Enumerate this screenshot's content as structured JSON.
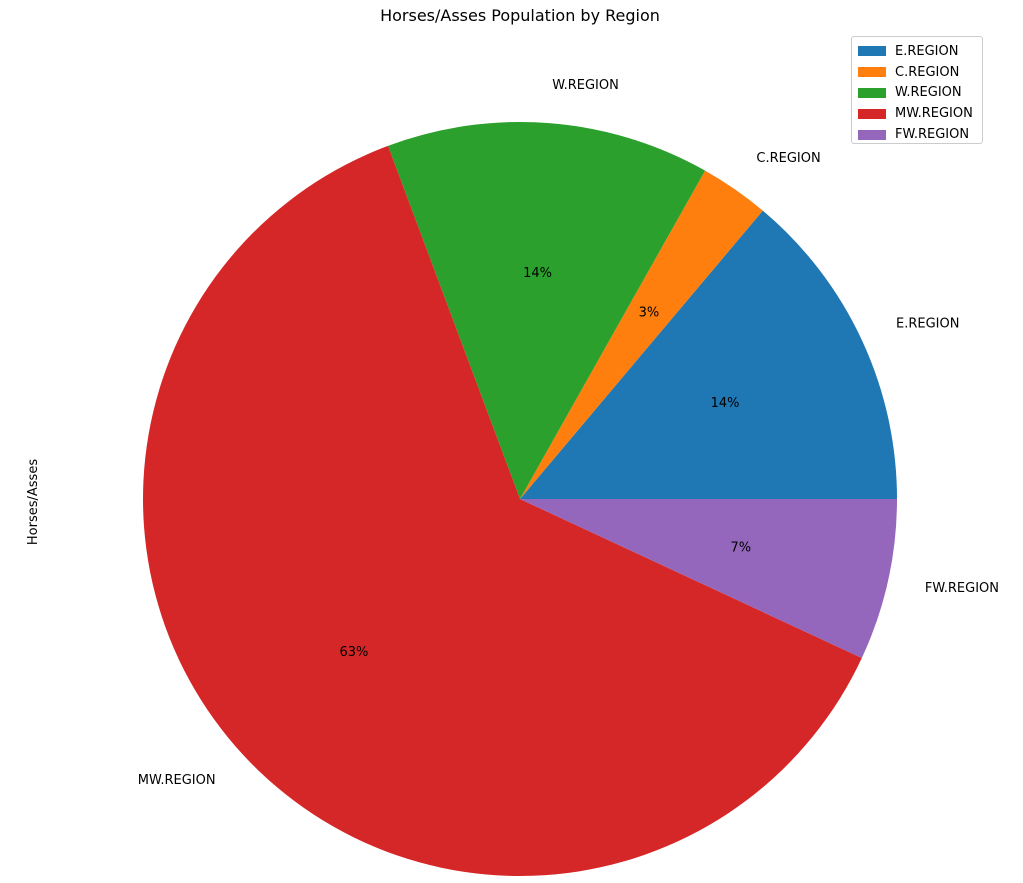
{
  "chart_data": {
    "type": "pie",
    "title": "Horses/Asses Population by Region",
    "ylabel": "Horses/Asses",
    "categories": [
      "E.REGION",
      "C.REGION",
      "W.REGION",
      "MW.REGION",
      "FW.REGION"
    ],
    "values": [
      14,
      3,
      14,
      63,
      7
    ],
    "value_labels": [
      "14%",
      "3%",
      "14%",
      "63%",
      "7%"
    ],
    "colors": [
      "#1f77b4",
      "#ff7f0e",
      "#2ca02c",
      "#d62728",
      "#9467bd"
    ],
    "start_angle_deg": 0,
    "direction": "counterclockwise",
    "legend": {
      "placement": "top-right",
      "entries": [
        "E.REGION",
        "C.REGION",
        "W.REGION",
        "MW.REGION",
        "FW.REGION"
      ]
    }
  }
}
